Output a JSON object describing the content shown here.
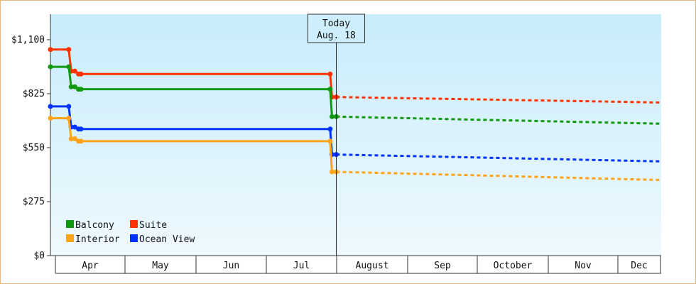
{
  "chart_data": {
    "type": "line",
    "y_tick_labels": [
      "$0",
      "$275",
      "$550",
      "$825",
      "$1,100"
    ],
    "y_ticks": [
      0,
      275,
      550,
      825,
      1100
    ],
    "ylim": [
      0,
      1230
    ],
    "month_labels": [
      "Apr",
      "May",
      "Jun",
      "Jul",
      "August",
      "Sep",
      "October",
      "Nov",
      "Dec"
    ],
    "today": {
      "line1": "Today",
      "line2": "Aug. 18",
      "x": 0.468
    },
    "series": [
      {
        "name": "Suite",
        "color": "#ff3300",
        "solid": [
          [
            0,
            1050
          ],
          [
            0.03,
            1050
          ],
          [
            0.034,
            940
          ],
          [
            0.04,
            940
          ],
          [
            0.046,
            925
          ],
          [
            0.05,
            925
          ],
          [
            0.458,
            925
          ],
          [
            0.461,
            808
          ],
          [
            0.468,
            808
          ]
        ],
        "dashed": [
          [
            0.468,
            808
          ],
          [
            1.0,
            780
          ]
        ]
      },
      {
        "name": "Balcony",
        "color": "#119911",
        "solid": [
          [
            0,
            962
          ],
          [
            0.03,
            962
          ],
          [
            0.034,
            860
          ],
          [
            0.04,
            860
          ],
          [
            0.046,
            848
          ],
          [
            0.05,
            848
          ],
          [
            0.458,
            848
          ],
          [
            0.461,
            708
          ],
          [
            0.468,
            708
          ]
        ],
        "dashed": [
          [
            0.468,
            708
          ],
          [
            1.0,
            672
          ]
        ]
      },
      {
        "name": "Ocean View",
        "color": "#0033ff",
        "solid": [
          [
            0,
            760
          ],
          [
            0.03,
            760
          ],
          [
            0.034,
            655
          ],
          [
            0.04,
            655
          ],
          [
            0.046,
            645
          ],
          [
            0.05,
            645
          ],
          [
            0.458,
            645
          ],
          [
            0.461,
            515
          ],
          [
            0.468,
            515
          ]
        ],
        "dashed": [
          [
            0.468,
            515
          ],
          [
            1.0,
            480
          ]
        ]
      },
      {
        "name": "Interior",
        "color": "#ffa31a",
        "solid": [
          [
            0,
            700
          ],
          [
            0.03,
            700
          ],
          [
            0.034,
            595
          ],
          [
            0.04,
            595
          ],
          [
            0.046,
            583
          ],
          [
            0.05,
            583
          ],
          [
            0.458,
            583
          ],
          [
            0.461,
            427
          ],
          [
            0.468,
            427
          ]
        ],
        "dashed": [
          [
            0.468,
            427
          ],
          [
            1.0,
            385
          ]
        ]
      }
    ],
    "legend_order": [
      "Balcony",
      "Suite",
      "Interior",
      "Ocean View"
    ],
    "legend_placement": "bottom-left"
  }
}
